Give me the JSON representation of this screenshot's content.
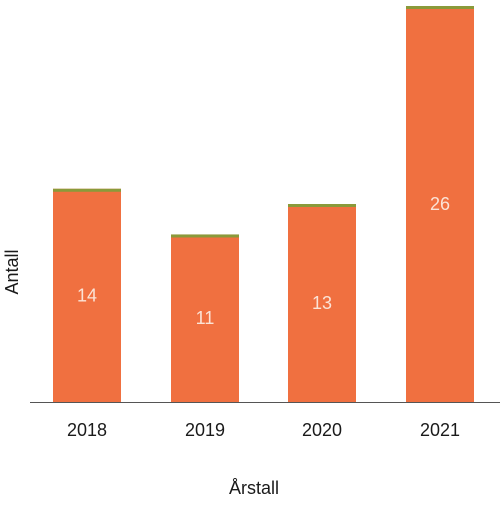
{
  "chart_data": {
    "type": "bar",
    "categories": [
      "2018",
      "2019",
      "2020",
      "2021"
    ],
    "values": [
      14,
      11,
      13,
      26
    ],
    "data_labels": [
      "14",
      "11",
      "13",
      "26"
    ],
    "xlabel": "Årstall",
    "ylabel": "Antall",
    "ylim": [
      0,
      26
    ],
    "grid": false,
    "legend": "none",
    "colors": {
      "bar": "#f07040",
      "bar_top": "#8a9a3a",
      "axis": "#555555"
    }
  }
}
